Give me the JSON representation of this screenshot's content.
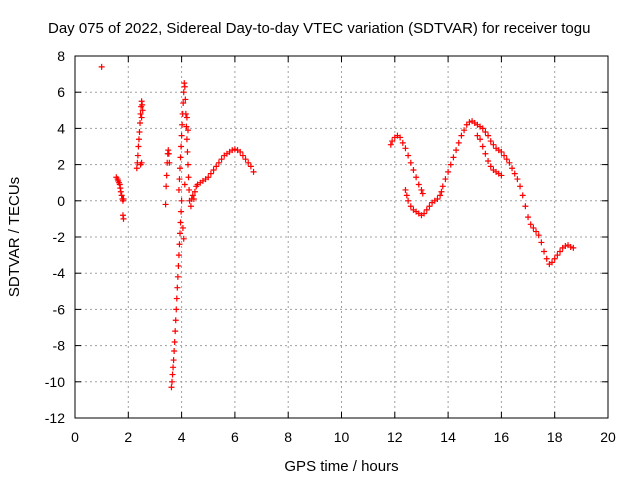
{
  "chart_data": {
    "type": "scatter",
    "title": "Day 075 of 2022, Sidereal Day-to-day VTEC variation (SDTVAR) for receiver togu",
    "xlabel": "GPS time / hours",
    "ylabel": "SDTVAR / TECUs",
    "xlim": [
      0,
      20
    ],
    "ylim": [
      -12,
      8
    ],
    "xticks": [
      0,
      2,
      4,
      6,
      8,
      10,
      12,
      14,
      16,
      18,
      20
    ],
    "yticks": [
      -12,
      -10,
      -8,
      -6,
      -4,
      -2,
      0,
      2,
      4,
      6,
      8
    ],
    "grid": true,
    "marker": "+",
    "series_color": "#ff0000",
    "series": [
      {
        "name": "SDTVAR",
        "points": [
          [
            1.0,
            7.4
          ],
          [
            1.55,
            1.3
          ],
          [
            1.6,
            1.2
          ],
          [
            1.62,
            1.1
          ],
          [
            1.65,
            1.0
          ],
          [
            1.68,
            0.9
          ],
          [
            1.7,
            0.7
          ],
          [
            1.72,
            0.5
          ],
          [
            1.75,
            0.3
          ],
          [
            1.78,
            0.1
          ],
          [
            1.8,
            0.0
          ],
          [
            1.82,
            0.1
          ],
          [
            1.8,
            -0.8
          ],
          [
            1.82,
            -1.0
          ],
          [
            2.32,
            1.8
          ],
          [
            2.34,
            2.1
          ],
          [
            2.36,
            2.5
          ],
          [
            2.38,
            3.0
          ],
          [
            2.4,
            3.4
          ],
          [
            2.42,
            3.8
          ],
          [
            2.44,
            4.3
          ],
          [
            2.46,
            4.8
          ],
          [
            2.48,
            5.2
          ],
          [
            2.5,
            5.5
          ],
          [
            2.52,
            5.3
          ],
          [
            2.54,
            5.0
          ],
          [
            2.5,
            2.1
          ],
          [
            2.46,
            2.0
          ],
          [
            2.5,
            4.6
          ],
          [
            3.4,
            -0.2
          ],
          [
            3.42,
            0.8
          ],
          [
            3.44,
            1.4
          ],
          [
            3.46,
            2.1
          ],
          [
            3.48,
            2.6
          ],
          [
            3.5,
            2.8
          ],
          [
            3.52,
            2.6
          ],
          [
            3.54,
            2.1
          ],
          [
            3.62,
            -10.3
          ],
          [
            3.64,
            -10.0
          ],
          [
            3.66,
            -9.6
          ],
          [
            3.68,
            -9.2
          ],
          [
            3.7,
            -8.8
          ],
          [
            3.72,
            -8.3
          ],
          [
            3.74,
            -7.8
          ],
          [
            3.76,
            -7.2
          ],
          [
            3.78,
            -6.6
          ],
          [
            3.8,
            -6.0
          ],
          [
            3.82,
            -5.4
          ],
          [
            3.84,
            -4.8
          ],
          [
            3.86,
            -4.2
          ],
          [
            3.88,
            -3.6
          ],
          [
            3.9,
            -3.0
          ],
          [
            3.92,
            -2.4
          ],
          [
            3.94,
            -1.8
          ],
          [
            3.96,
            -1.2
          ],
          [
            3.98,
            -0.6
          ],
          [
            4.0,
            0.0
          ],
          [
            3.9,
            0.6
          ],
          [
            3.92,
            1.2
          ],
          [
            3.94,
            1.8
          ],
          [
            3.96,
            2.4
          ],
          [
            3.98,
            3.0
          ],
          [
            4.0,
            3.6
          ],
          [
            4.02,
            4.2
          ],
          [
            4.04,
            4.8
          ],
          [
            4.06,
            5.4
          ],
          [
            4.08,
            6.0
          ],
          [
            4.1,
            6.5
          ],
          [
            4.12,
            6.3
          ],
          [
            4.14,
            5.6
          ],
          [
            4.16,
            4.8
          ],
          [
            4.18,
            4.1
          ],
          [
            4.2,
            3.4
          ],
          [
            4.22,
            2.7
          ],
          [
            4.24,
            2.0
          ],
          [
            4.26,
            1.3
          ],
          [
            4.28,
            0.6
          ],
          [
            4.3,
            0.0
          ],
          [
            4.05,
            -1.5
          ],
          [
            4.08,
            -2.1
          ],
          [
            4.12,
            0.9
          ],
          [
            4.2,
            4.6
          ],
          [
            4.24,
            3.9
          ],
          [
            4.35,
            -0.3
          ],
          [
            4.38,
            0.1
          ],
          [
            4.42,
            0.3
          ],
          [
            4.46,
            0.1
          ],
          [
            4.5,
            0.5
          ],
          [
            4.55,
            0.8
          ],
          [
            4.6,
            0.9
          ],
          [
            4.7,
            1.0
          ],
          [
            4.8,
            1.1
          ],
          [
            4.9,
            1.2
          ],
          [
            5.0,
            1.3
          ],
          [
            5.1,
            1.5
          ],
          [
            5.2,
            1.7
          ],
          [
            5.3,
            1.9
          ],
          [
            5.4,
            2.1
          ],
          [
            5.5,
            2.3
          ],
          [
            5.6,
            2.5
          ],
          [
            5.7,
            2.6
          ],
          [
            5.8,
            2.7
          ],
          [
            5.9,
            2.8
          ],
          [
            6.0,
            2.85
          ],
          [
            6.1,
            2.8
          ],
          [
            6.2,
            2.7
          ],
          [
            6.3,
            2.5
          ],
          [
            6.4,
            2.3
          ],
          [
            6.5,
            2.1
          ],
          [
            6.6,
            1.9
          ],
          [
            6.7,
            1.6
          ],
          [
            11.85,
            3.1
          ],
          [
            11.9,
            3.3
          ],
          [
            12.0,
            3.5
          ],
          [
            12.1,
            3.6
          ],
          [
            12.2,
            3.5
          ],
          [
            12.3,
            3.2
          ],
          [
            12.4,
            2.9
          ],
          [
            12.5,
            2.5
          ],
          [
            12.6,
            2.1
          ],
          [
            12.7,
            1.7
          ],
          [
            12.8,
            1.3
          ],
          [
            12.9,
            0.9
          ],
          [
            13.0,
            0.6
          ],
          [
            13.05,
            0.4
          ],
          [
            12.4,
            0.6
          ],
          [
            12.45,
            0.3
          ],
          [
            12.5,
            0.0
          ],
          [
            12.6,
            -0.3
          ],
          [
            12.7,
            -0.5
          ],
          [
            12.8,
            -0.6
          ],
          [
            12.9,
            -0.7
          ],
          [
            13.0,
            -0.8
          ],
          [
            13.1,
            -0.7
          ],
          [
            13.2,
            -0.5
          ],
          [
            13.3,
            -0.3
          ],
          [
            13.4,
            -0.1
          ],
          [
            13.5,
            0.0
          ],
          [
            13.6,
            0.1
          ],
          [
            13.7,
            0.3
          ],
          [
            13.75,
            0.5
          ],
          [
            13.8,
            0.8
          ],
          [
            13.9,
            1.2
          ],
          [
            14.0,
            1.6
          ],
          [
            14.1,
            2.0
          ],
          [
            14.2,
            2.4
          ],
          [
            14.3,
            2.8
          ],
          [
            14.4,
            3.2
          ],
          [
            14.5,
            3.6
          ],
          [
            14.6,
            3.9
          ],
          [
            14.7,
            4.2
          ],
          [
            14.8,
            4.35
          ],
          [
            14.9,
            4.4
          ],
          [
            15.0,
            4.3
          ],
          [
            15.1,
            4.2
          ],
          [
            15.2,
            4.1
          ],
          [
            15.3,
            4.0
          ],
          [
            15.4,
            3.8
          ],
          [
            15.5,
            3.6
          ],
          [
            15.6,
            3.3
          ],
          [
            15.1,
            3.6
          ],
          [
            15.2,
            3.4
          ],
          [
            15.3,
            3.0
          ],
          [
            15.4,
            2.6
          ],
          [
            15.5,
            2.2
          ],
          [
            15.6,
            1.9
          ],
          [
            15.7,
            1.7
          ],
          [
            15.8,
            1.6
          ],
          [
            15.9,
            1.5
          ],
          [
            16.0,
            1.4
          ],
          [
            15.7,
            3.1
          ],
          [
            15.8,
            2.9
          ],
          [
            15.9,
            2.8
          ],
          [
            16.0,
            2.7
          ],
          [
            16.1,
            2.5
          ],
          [
            16.2,
            2.3
          ],
          [
            16.3,
            2.1
          ],
          [
            16.4,
            1.8
          ],
          [
            16.5,
            1.5
          ],
          [
            16.6,
            1.2
          ],
          [
            16.7,
            0.8
          ],
          [
            16.8,
            0.3
          ],
          [
            16.9,
            -0.3
          ],
          [
            17.0,
            -0.9
          ],
          [
            17.1,
            -1.3
          ],
          [
            17.2,
            -1.5
          ],
          [
            17.3,
            -1.7
          ],
          [
            17.4,
            -1.9
          ],
          [
            17.5,
            -2.3
          ],
          [
            17.6,
            -2.8
          ],
          [
            17.7,
            -3.2
          ],
          [
            17.8,
            -3.5
          ],
          [
            17.9,
            -3.4
          ],
          [
            18.0,
            -3.2
          ],
          [
            18.1,
            -3.0
          ],
          [
            18.2,
            -2.8
          ],
          [
            18.3,
            -2.6
          ],
          [
            18.4,
            -2.5
          ],
          [
            18.5,
            -2.45
          ],
          [
            18.6,
            -2.55
          ],
          [
            18.7,
            -2.6
          ]
        ]
      }
    ]
  }
}
